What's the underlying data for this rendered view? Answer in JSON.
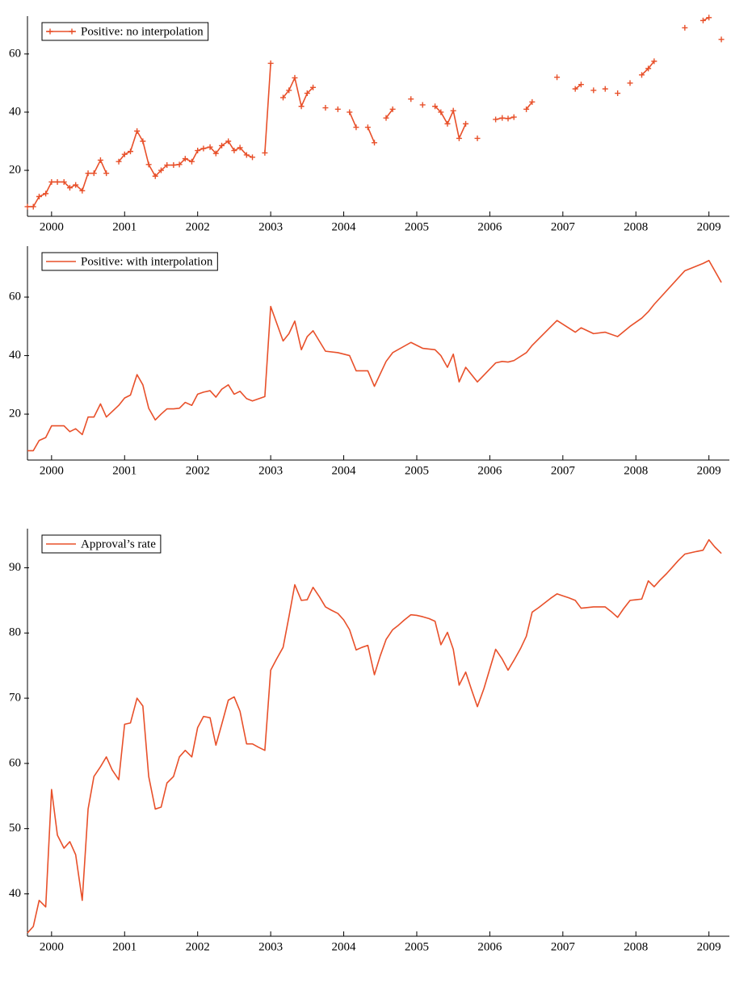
{
  "chart_data": [
    {
      "type": "line",
      "legend": "upper left",
      "x": [
        1999.67,
        1999.75,
        1999.83,
        1999.92,
        2000,
        2000.08,
        2000.17,
        2000.25,
        2000.33,
        2000.42,
        2000.5,
        2000.58,
        2000.67,
        2000.75,
        2000.83,
        2000.92,
        2001,
        2001.08,
        2001.17,
        2001.25,
        2001.33,
        2001.42,
        2001.5,
        2001.58,
        2001.67,
        2001.75,
        2001.83,
        2001.92,
        2002,
        2002.08,
        2002.17,
        2002.25,
        2002.33,
        2002.42,
        2002.5,
        2002.58,
        2002.67,
        2002.75,
        2002.83,
        2002.92,
        2003,
        2003.08,
        2003.17,
        2003.25,
        2003.33,
        2003.42,
        2003.5,
        2003.58,
        2003.67,
        2003.75,
        2003.83,
        2003.92,
        2004,
        2004.08,
        2004.17,
        2004.25,
        2004.33,
        2004.42,
        2004.5,
        2004.58,
        2004.67,
        2004.75,
        2004.83,
        2004.92,
        2005,
        2005.08,
        2005.17,
        2005.25,
        2005.33,
        2005.42,
        2005.5,
        2005.58,
        2005.67,
        2005.75,
        2005.83,
        2005.92,
        2006,
        2006.08,
        2006.17,
        2006.25,
        2006.33,
        2006.42,
        2006.5,
        2006.58,
        2006.67,
        2006.75,
        2006.83,
        2006.92,
        2007,
        2007.08,
        2007.17,
        2007.25,
        2007.33,
        2007.42,
        2007.5,
        2007.58,
        2007.67,
        2007.75,
        2007.83,
        2007.92,
        2008,
        2008.08,
        2008.17,
        2008.25,
        2008.33,
        2008.42,
        2008.5,
        2008.58,
        2008.67,
        2008.75,
        2008.83,
        2008.92,
        2009,
        2009.08,
        2009.17
      ],
      "series": [
        {
          "name": "Positive: no interpolation",
          "color": "#e8502a",
          "marker": "+",
          "values": [
            7.5,
            7.5,
            11,
            12,
            16,
            16,
            16,
            14,
            15,
            13,
            19,
            19,
            23.5,
            19,
            null,
            23,
            25.5,
            26.5,
            33.5,
            30,
            22,
            18,
            20,
            21.8,
            21.8,
            22,
            24,
            23,
            26.8,
            27.5,
            28,
            25.8,
            28.5,
            30,
            26.8,
            27.8,
            25.3,
            24.5,
            null,
            26,
            56.8,
            null,
            45,
            47.5,
            51.8,
            42,
            46.5,
            48.5,
            null,
            41.5,
            null,
            41,
            null,
            40,
            34.8,
            null,
            34.8,
            29.5,
            null,
            38,
            41,
            null,
            null,
            44.5,
            null,
            42.5,
            null,
            42,
            40,
            36,
            40.5,
            31,
            36,
            null,
            31,
            null,
            null,
            37.5,
            38,
            37.8,
            38.3,
            null,
            41,
            43.5,
            null,
            null,
            null,
            52,
            null,
            null,
            48,
            49.5,
            null,
            47.5,
            null,
            48,
            null,
            46.5,
            null,
            50,
            null,
            52.8,
            55,
            57.5,
            null,
            null,
            null,
            null,
            69,
            null,
            null,
            71.5,
            72.5,
            null,
            65
          ]
        }
      ],
      "xlim": [
        1999.67,
        2009.28
      ],
      "xticks": [
        2000,
        2001,
        2002,
        2003,
        2004,
        2005,
        2006,
        2007,
        2008,
        2009
      ],
      "ylim": [
        4.2,
        73
      ],
      "yticks": [
        20,
        40,
        60
      ]
    },
    {
      "type": "line",
      "legend": "upper left",
      "x": [
        1999.67,
        1999.75,
        1999.83,
        1999.92,
        2000,
        2000.08,
        2000.17,
        2000.25,
        2000.33,
        2000.42,
        2000.5,
        2000.58,
        2000.67,
        2000.75,
        2000.92,
        2001,
        2001.08,
        2001.17,
        2001.25,
        2001.33,
        2001.42,
        2001.5,
        2001.58,
        2001.67,
        2001.75,
        2001.83,
        2001.92,
        2002,
        2002.08,
        2002.17,
        2002.25,
        2002.33,
        2002.42,
        2002.5,
        2002.58,
        2002.67,
        2002.75,
        2002.92,
        2003,
        2003.17,
        2003.25,
        2003.33,
        2003.42,
        2003.5,
        2003.58,
        2003.75,
        2003.92,
        2004.08,
        2004.17,
        2004.33,
        2004.42,
        2004.58,
        2004.67,
        2004.92,
        2005.08,
        2005.25,
        2005.33,
        2005.42,
        2005.5,
        2005.58,
        2005.67,
        2005.83,
        2006.08,
        2006.17,
        2006.25,
        2006.33,
        2006.5,
        2006.58,
        2006.92,
        2007.17,
        2007.25,
        2007.42,
        2007.58,
        2007.75,
        2007.92,
        2008.08,
        2008.17,
        2008.25,
        2008.67,
        2008.92,
        2009,
        2009.17
      ],
      "series": [
        {
          "name": "Positive: with interpolation",
          "color": "#e8502a",
          "values": [
            7.5,
            7.5,
            11,
            12,
            16,
            16,
            16,
            14,
            15,
            13,
            19,
            19,
            23.5,
            19,
            23,
            25.5,
            26.5,
            33.5,
            30,
            22,
            18,
            20,
            21.8,
            21.8,
            22,
            24,
            23,
            26.8,
            27.5,
            28,
            25.8,
            28.5,
            30,
            26.8,
            27.8,
            25.3,
            24.5,
            26,
            56.8,
            45,
            47.5,
            51.8,
            42,
            46.5,
            48.5,
            41.5,
            41,
            40,
            34.8,
            34.8,
            29.5,
            38,
            41,
            44.5,
            42.5,
            42,
            40,
            36,
            40.5,
            31,
            36,
            31,
            37.5,
            38,
            37.8,
            38.3,
            41,
            43.5,
            52,
            48,
            49.5,
            47.5,
            48,
            46.5,
            50,
            52.8,
            55,
            57.5,
            69,
            71.5,
            72.5,
            65
          ]
        }
      ],
      "xlim": [
        1999.67,
        2009.28
      ],
      "xticks": [
        2000,
        2001,
        2002,
        2003,
        2004,
        2005,
        2006,
        2007,
        2008,
        2009
      ],
      "ylim": [
        4.3,
        77.4
      ],
      "yticks": [
        20,
        40,
        60
      ]
    },
    {
      "type": "line",
      "legend": "upper left",
      "x": [
        1999.67,
        1999.75,
        1999.83,
        1999.92,
        2000,
        2000.08,
        2000.17,
        2000.25,
        2000.33,
        2000.42,
        2000.5,
        2000.58,
        2000.67,
        2000.75,
        2000.83,
        2000.92,
        2001,
        2001.08,
        2001.17,
        2001.25,
        2001.33,
        2001.42,
        2001.5,
        2001.58,
        2001.67,
        2001.75,
        2001.83,
        2001.92,
        2002,
        2002.08,
        2002.17,
        2002.25,
        2002.33,
        2002.42,
        2002.5,
        2002.58,
        2002.67,
        2002.75,
        2002.83,
        2002.92,
        2003,
        2003.08,
        2003.17,
        2003.25,
        2003.33,
        2003.42,
        2003.5,
        2003.58,
        2003.67,
        2003.75,
        2003.83,
        2003.92,
        2004,
        2004.08,
        2004.17,
        2004.25,
        2004.33,
        2004.42,
        2004.5,
        2004.58,
        2004.67,
        2004.75,
        2004.83,
        2004.92,
        2005,
        2005.08,
        2005.17,
        2005.25,
        2005.33,
        2005.42,
        2005.5,
        2005.58,
        2005.67,
        2005.75,
        2005.83,
        2005.92,
        2006,
        2006.08,
        2006.17,
        2006.25,
        2006.33,
        2006.42,
        2006.5,
        2006.58,
        2006.67,
        2006.75,
        2006.83,
        2006.92,
        2007,
        2007.08,
        2007.17,
        2007.25,
        2007.33,
        2007.42,
        2007.5,
        2007.58,
        2007.67,
        2007.75,
        2007.83,
        2007.92,
        2008,
        2008.08,
        2008.17,
        2008.25,
        2008.33,
        2008.42,
        2008.5,
        2008.58,
        2008.67,
        2008.75,
        2008.83,
        2008.92,
        2009,
        2009.08,
        2009.17
      ],
      "series": [
        {
          "name": "Approval’s rate",
          "color": "#e8502a",
          "values": [
            34,
            35,
            39,
            38,
            56,
            49,
            47,
            48,
            46,
            39,
            53,
            58,
            59.5,
            61,
            59,
            57.5,
            66,
            66.2,
            70,
            68.8,
            58,
            53,
            53.3,
            57,
            58,
            61,
            62,
            61,
            65.5,
            67.2,
            67,
            62.8,
            66,
            69.7,
            70.2,
            68,
            63,
            63,
            62.5,
            62,
            74.3,
            76,
            77.8,
            82.5,
            87.4,
            85,
            85.1,
            87,
            85.5,
            84,
            83.5,
            83,
            82,
            80.5,
            77.4,
            77.8,
            78.1,
            73.6,
            76.5,
            79,
            80.5,
            81.2,
            82,
            82.8,
            82.7,
            82.5,
            82.2,
            81.8,
            78.2,
            80.1,
            77.5,
            72,
            74,
            71.3,
            68.7,
            71.5,
            74.5,
            77.5,
            76,
            74.3,
            75.8,
            77.6,
            79.5,
            83.2,
            83.9,
            84.6,
            85.3,
            86,
            85.7,
            85.4,
            85,
            83.8,
            83.9,
            84,
            84,
            84,
            83.2,
            82.4,
            83.7,
            85,
            85.1,
            85.2,
            88,
            87.1,
            88.1,
            89.1,
            90.1,
            91.1,
            92.1,
            92.3,
            92.5,
            92.7,
            94.3,
            93.2,
            92.2
          ]
        }
      ],
      "xlim": [
        1999.67,
        2009.28
      ],
      "xticks": [
        2000,
        2001,
        2002,
        2003,
        2004,
        2005,
        2006,
        2007,
        2008,
        2009
      ],
      "ylim": [
        33.5,
        96
      ],
      "yticks": [
        40,
        50,
        60,
        70,
        80,
        90
      ]
    }
  ]
}
